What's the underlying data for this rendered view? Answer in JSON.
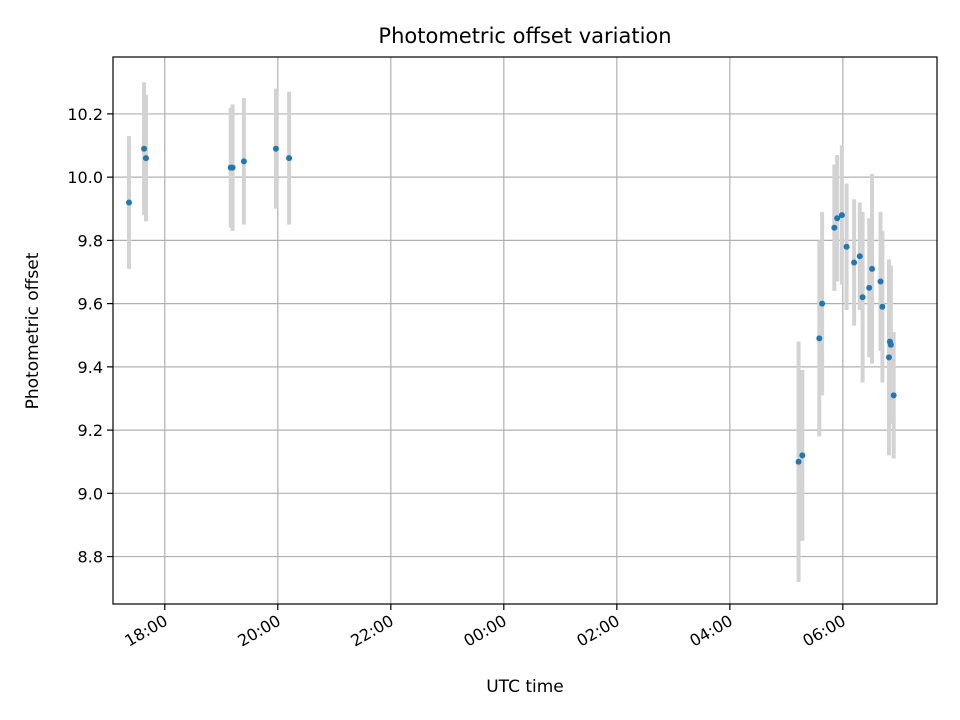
{
  "chart_data": {
    "type": "scatter",
    "title": "Photometric offset variation",
    "xlabel": "UTC time",
    "ylabel": "Photometric offset",
    "x_tick_labels": [
      "18:00",
      "20:00",
      "22:00",
      "00:00",
      "02:00",
      "04:00",
      "06:00"
    ],
    "x_ticks": [
      "18:00",
      "20:00",
      "22:00",
      "00:00",
      "02:00",
      "04:00",
      "06:00"
    ],
    "y_ticks": [
      8.8,
      9.0,
      9.2,
      9.4,
      9.6,
      9.8,
      10.0,
      10.2
    ],
    "xlim": [
      "17:05",
      "07:40"
    ],
    "ylim": [
      8.65,
      10.38
    ],
    "grid": true,
    "marker_color": "#1f77b4",
    "errorbar_color": "#d3d3d3",
    "points": [
      {
        "time": "17:22",
        "y": 9.92,
        "err": 0.21
      },
      {
        "time": "17:38",
        "y": 10.09,
        "err": 0.21
      },
      {
        "time": "17:40",
        "y": 10.06,
        "err": 0.2
      },
      {
        "time": "19:10",
        "y": 10.03,
        "err": 0.19
      },
      {
        "time": "19:12",
        "y": 10.03,
        "err": 0.2
      },
      {
        "time": "19:24",
        "y": 10.05,
        "err": 0.2
      },
      {
        "time": "19:58",
        "y": 10.09,
        "err": 0.19
      },
      {
        "time": "20:12",
        "y": 10.06,
        "err": 0.21
      },
      {
        "time": "05:13",
        "y": 9.1,
        "err": 0.38
      },
      {
        "time": "05:17",
        "y": 9.12,
        "err": 0.27
      },
      {
        "time": "05:35",
        "y": 9.49,
        "err": 0.31
      },
      {
        "time": "05:38",
        "y": 9.6,
        "err": 0.29
      },
      {
        "time": "05:51",
        "y": 9.84,
        "err": 0.2
      },
      {
        "time": "05:54",
        "y": 9.87,
        "err": 0.2
      },
      {
        "time": "05:59",
        "y": 9.88,
        "err": 0.22
      },
      {
        "time": "06:04",
        "y": 9.78,
        "err": 0.2
      },
      {
        "time": "06:12",
        "y": 9.73,
        "err": 0.2
      },
      {
        "time": "06:18",
        "y": 9.75,
        "err": 0.17
      },
      {
        "time": "06:21",
        "y": 9.62,
        "err": 0.27
      },
      {
        "time": "06:28",
        "y": 9.65,
        "err": 0.22
      },
      {
        "time": "06:31",
        "y": 9.71,
        "err": 0.3
      },
      {
        "time": "06:40",
        "y": 9.67,
        "err": 0.22
      },
      {
        "time": "06:42",
        "y": 9.59,
        "err": 0.24
      },
      {
        "time": "06:49",
        "y": 9.43,
        "err": 0.31
      },
      {
        "time": "06:50",
        "y": 9.48,
        "err": 0.24
      },
      {
        "time": "06:51",
        "y": 9.47,
        "err": 0.25
      },
      {
        "time": "06:54",
        "y": 9.31,
        "err": 0.2
      }
    ]
  }
}
